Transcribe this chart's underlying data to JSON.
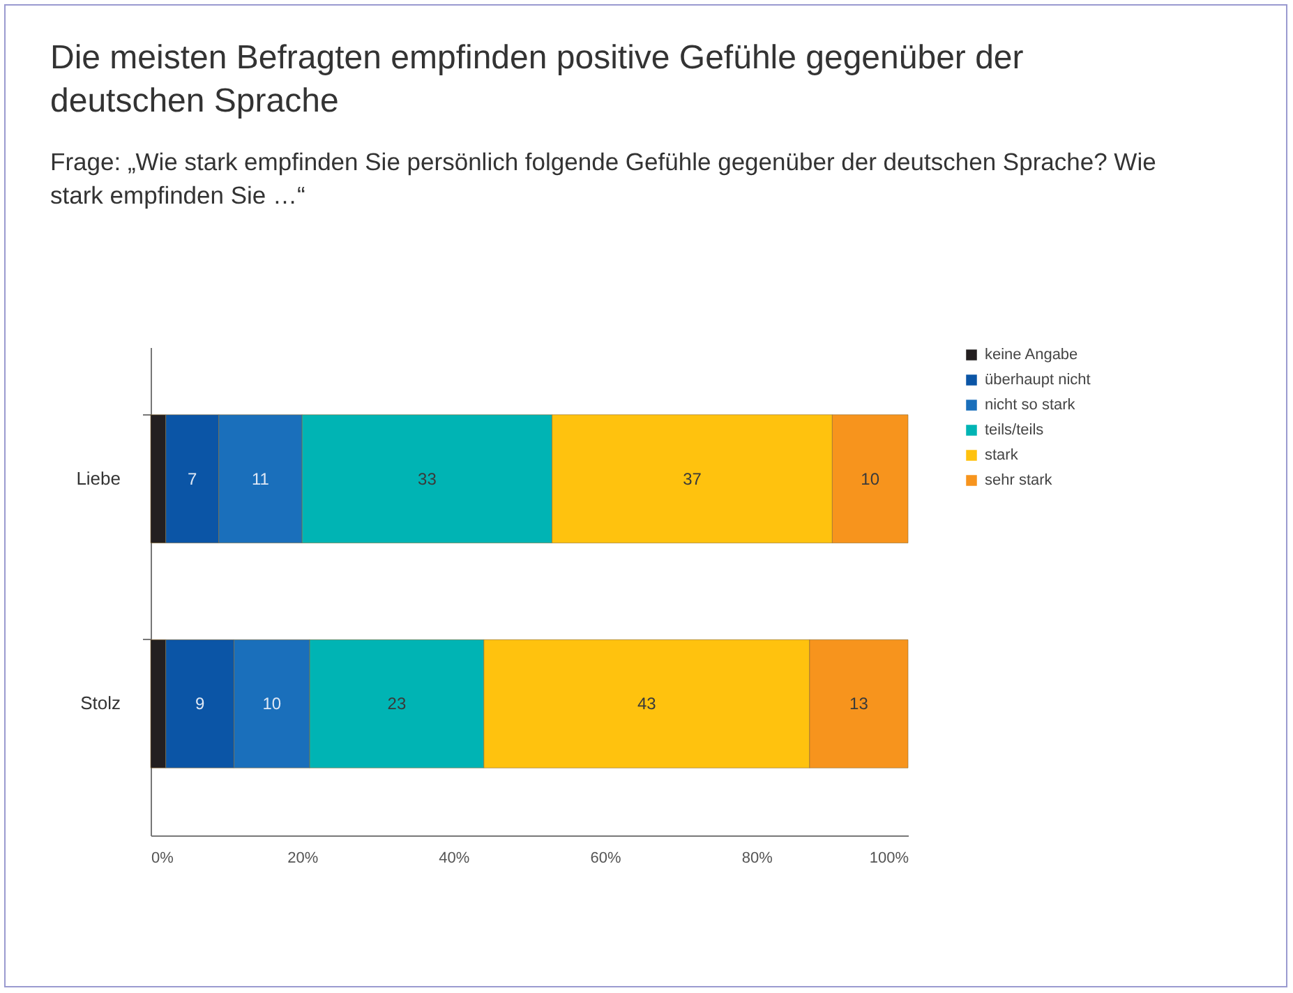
{
  "chart_data": {
    "type": "bar",
    "title": "Die meisten Befragten empfinden positive Gefühle gegenüber der deutschen Sprache",
    "subtitle": "Frage: „Wie stark empfinden Sie persönlich folgende Gefühle gegenüber der deutschen Sprache? Wie stark empfinden Sie …“",
    "orientation": "horizontal",
    "stacked": true,
    "categories": [
      "Liebe",
      "Stolz"
    ],
    "series": [
      {
        "name": "keine Angabe",
        "color": "#231f20",
        "values": [
          2,
          2
        ],
        "value_labels": [
          null,
          null
        ]
      },
      {
        "name": "überhaupt nicht",
        "color": "#0b55a6",
        "values": [
          7,
          9
        ],
        "value_labels": [
          "7",
          "9"
        ]
      },
      {
        "name": "nicht so stark",
        "color": "#1a6fbb",
        "values": [
          11,
          10
        ],
        "value_labels": [
          "11",
          "10"
        ]
      },
      {
        "name": "teils/teils",
        "color": "#00b4b4",
        "values": [
          33,
          23
        ],
        "value_labels": [
          "33",
          "23"
        ]
      },
      {
        "name": "stark",
        "color": "#ffc20e",
        "values": [
          37,
          43
        ],
        "value_labels": [
          "37",
          "43"
        ]
      },
      {
        "name": "sehr stark",
        "color": "#f7941d",
        "values": [
          10,
          13
        ],
        "value_labels": [
          "10",
          "13"
        ]
      }
    ],
    "xlim": [
      0,
      100
    ],
    "xticks": [
      {
        "value": 0,
        "label": "0%"
      },
      {
        "value": 20,
        "label": "20%"
      },
      {
        "value": 40,
        "label": "40%"
      },
      {
        "value": 60,
        "label": "60%"
      },
      {
        "value": 80,
        "label": "80%"
      },
      {
        "value": 100,
        "label": "100%"
      }
    ],
    "grid": false,
    "legend": "right"
  }
}
